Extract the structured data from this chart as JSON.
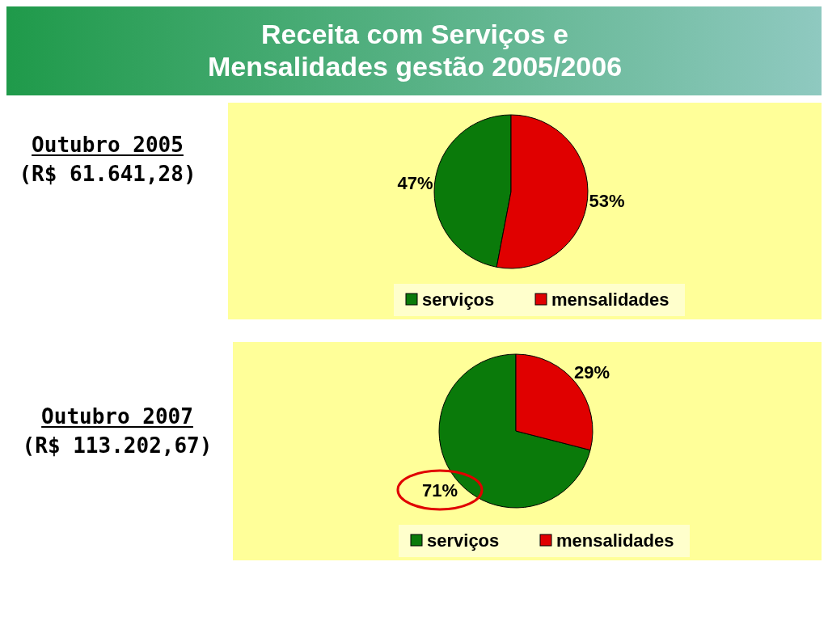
{
  "chart_data": [
    {
      "type": "pie",
      "title": "Receita com Serviços e Mensalidades gestão 2005/2006",
      "subtitle": "Outubro 2005",
      "annotations": [
        "(R$ 61.641,28)"
      ],
      "categories": [
        "serviços",
        "mensalidades"
      ],
      "values": [
        47,
        53
      ],
      "colors": [
        "#0a7a0a",
        "#e00000"
      ],
      "value_labels": [
        "47%",
        "53%"
      ],
      "legend": "bottom"
    },
    {
      "type": "pie",
      "subtitle": "Outubro 2007",
      "annotations": [
        "(R$ 113.202,67)"
      ],
      "categories": [
        "serviços",
        "mensalidades"
      ],
      "values": [
        71,
        29
      ],
      "colors": [
        "#0a7a0a",
        "#e00000"
      ],
      "value_labels": [
        "71%",
        "29%"
      ],
      "legend": "bottom"
    }
  ]
}
